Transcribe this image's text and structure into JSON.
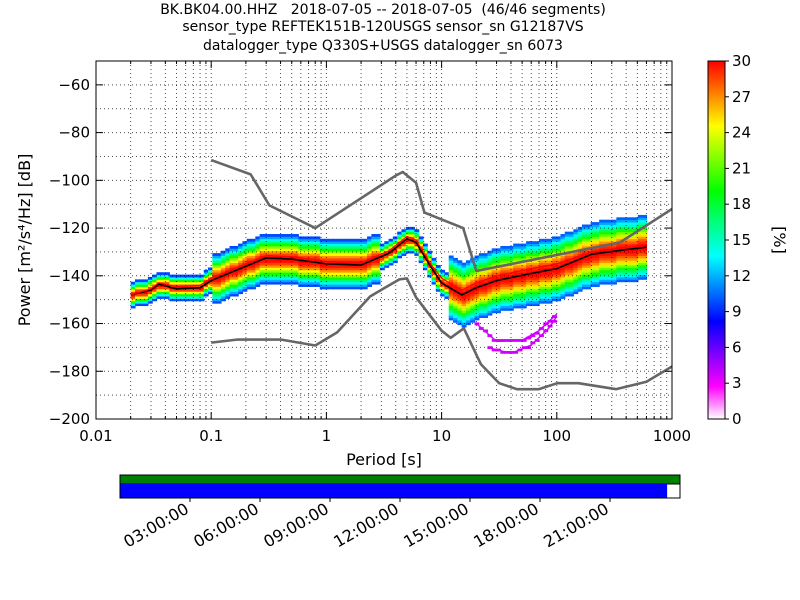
{
  "header": {
    "line1": "BK.BK04.00.HHZ   2018-07-05 -- 2018-07-05  (46/46 segments)",
    "line2": "sensor_type REFTEK151B-120USGS sensor_sn G12187VS",
    "line3": "datalogger_type Q330S+USGS datalogger_sn 6073"
  },
  "chart_data": {
    "type": "heatmap",
    "xlabel": "Period [s]",
    "ylabel": "Power [m²/s⁴/Hz] [dB]",
    "x_scale": "log",
    "xlim": [
      0.01,
      1000
    ],
    "ylim": [
      -200,
      -50
    ],
    "x_ticks": [
      0.01,
      0.1,
      1,
      10,
      100,
      1000
    ],
    "x_tick_labels": [
      "0.01",
      "0.1",
      "1",
      "10",
      "100",
      "1000"
    ],
    "y_ticks": [
      -200,
      -180,
      -160,
      -140,
      -120,
      -100,
      -80,
      -60
    ],
    "y_tick_labels": [
      "−200",
      "−180",
      "−160",
      "−140",
      "−120",
      "−100",
      "−80",
      "−60"
    ],
    "grid": true,
    "colorbar": {
      "label": "[%]",
      "range": [
        0,
        30
      ],
      "ticks": [
        0,
        3,
        6,
        9,
        12,
        15,
        18,
        21,
        24,
        27,
        30
      ],
      "tick_labels": [
        "0",
        "3",
        "6",
        "9",
        "12",
        "15",
        "18",
        "21",
        "24",
        "27",
        "30"
      ],
      "colormap": [
        "#ffffff",
        "#ff00ff",
        "#7f00ff",
        "#0000ff",
        "#0080ff",
        "#00ffff",
        "#00ff80",
        "#00ff00",
        "#80ff00",
        "#ffff00",
        "#ff8000",
        "#ff0000"
      ]
    },
    "series": [
      {
        "role": "upper-noise-model",
        "color": "#666666",
        "points": [
          [
            0.1,
            -91.5
          ],
          [
            0.22,
            -97.5
          ],
          [
            0.32,
            -110.5
          ],
          [
            0.8,
            -120
          ],
          [
            4,
            -98
          ],
          [
            4.6,
            -96.5
          ],
          [
            6,
            -101
          ],
          [
            7.1,
            -113.5
          ],
          [
            15.4,
            -120
          ],
          [
            20,
            -138
          ],
          [
            354,
            -126
          ],
          [
            1000,
            -112
          ]
        ]
      },
      {
        "role": "lower-noise-model",
        "color": "#666666",
        "points": [
          [
            0.1,
            -168
          ],
          [
            0.17,
            -166.7
          ],
          [
            0.4,
            -166.7
          ],
          [
            0.8,
            -169.2
          ],
          [
            1.24,
            -163.7
          ],
          [
            2.4,
            -148.6
          ],
          [
            4.3,
            -141.5
          ],
          [
            5,
            -141.1
          ],
          [
            6,
            -149
          ],
          [
            10,
            -163
          ],
          [
            12,
            -166
          ],
          [
            15.6,
            -162
          ],
          [
            21.9,
            -177
          ],
          [
            31.6,
            -185
          ],
          [
            45,
            -187.5
          ],
          [
            70,
            -187.5
          ],
          [
            101,
            -185
          ],
          [
            154,
            -185
          ],
          [
            328,
            -187.5
          ],
          [
            600,
            -184.4
          ],
          [
            1000,
            -178
          ]
        ]
      },
      {
        "role": "psd-mean",
        "color": "#000000",
        "points": [
          [
            0.02,
            -148
          ],
          [
            0.03,
            -146
          ],
          [
            0.035,
            -143.5
          ],
          [
            0.05,
            -145.5
          ],
          [
            0.08,
            -145
          ],
          [
            0.1,
            -142
          ],
          [
            0.2,
            -136
          ],
          [
            0.3,
            -132.5
          ],
          [
            0.5,
            -133
          ],
          [
            1,
            -135
          ],
          [
            2,
            -135.5
          ],
          [
            3.5,
            -130.5
          ],
          [
            5,
            -124.5
          ],
          [
            6,
            -126
          ],
          [
            8,
            -136
          ],
          [
            10,
            -143
          ],
          [
            15,
            -148
          ],
          [
            20,
            -145
          ],
          [
            30,
            -142
          ],
          [
            60,
            -139
          ],
          [
            100,
            -137
          ],
          [
            200,
            -131
          ],
          [
            400,
            -129
          ],
          [
            600,
            -128
          ]
        ]
      },
      {
        "role": "psd-mode",
        "color": "#ff0000",
        "points": [
          [
            0.02,
            -148
          ],
          [
            0.03,
            -145.5
          ],
          [
            0.035,
            -143
          ],
          [
            0.05,
            -144.5
          ],
          [
            0.08,
            -144
          ],
          [
            0.1,
            -141
          ],
          [
            0.2,
            -135
          ],
          [
            0.3,
            -131.5
          ],
          [
            0.5,
            -132
          ],
          [
            1,
            -134
          ],
          [
            2,
            -134.5
          ],
          [
            3.5,
            -129.5
          ],
          [
            5,
            -123.5
          ],
          [
            6,
            -125
          ],
          [
            8,
            -135
          ],
          [
            10,
            -141
          ],
          [
            15,
            -146
          ],
          [
            20,
            -143
          ],
          [
            30,
            -140
          ],
          [
            60,
            -137
          ],
          [
            100,
            -135
          ],
          [
            200,
            -130
          ],
          [
            400,
            -128
          ],
          [
            600,
            -127
          ]
        ]
      },
      {
        "role": "outlier-branch",
        "color": "#cc00ff",
        "points": [
          [
            20,
            -160
          ],
          [
            30,
            -167.5
          ],
          [
            50,
            -167
          ],
          [
            70,
            -163
          ],
          [
            100,
            -156
          ]
        ]
      },
      {
        "role": "outlier-branch",
        "color": "#cc00ff",
        "points": [
          [
            25,
            -170
          ],
          [
            40,
            -172.5
          ],
          [
            60,
            -169
          ],
          [
            85,
            -162
          ],
          [
            100,
            -157
          ]
        ]
      }
    ]
  },
  "timeline": {
    "tick_labels": [
      "03:00:00",
      "06:00:00",
      "09:00:00",
      "12:00:00",
      "15:00:00",
      "18:00:00",
      "21:00:00"
    ],
    "coverage_color": "#0000ff",
    "segments_color": "#008000",
    "coverage_fraction": 0.977
  }
}
